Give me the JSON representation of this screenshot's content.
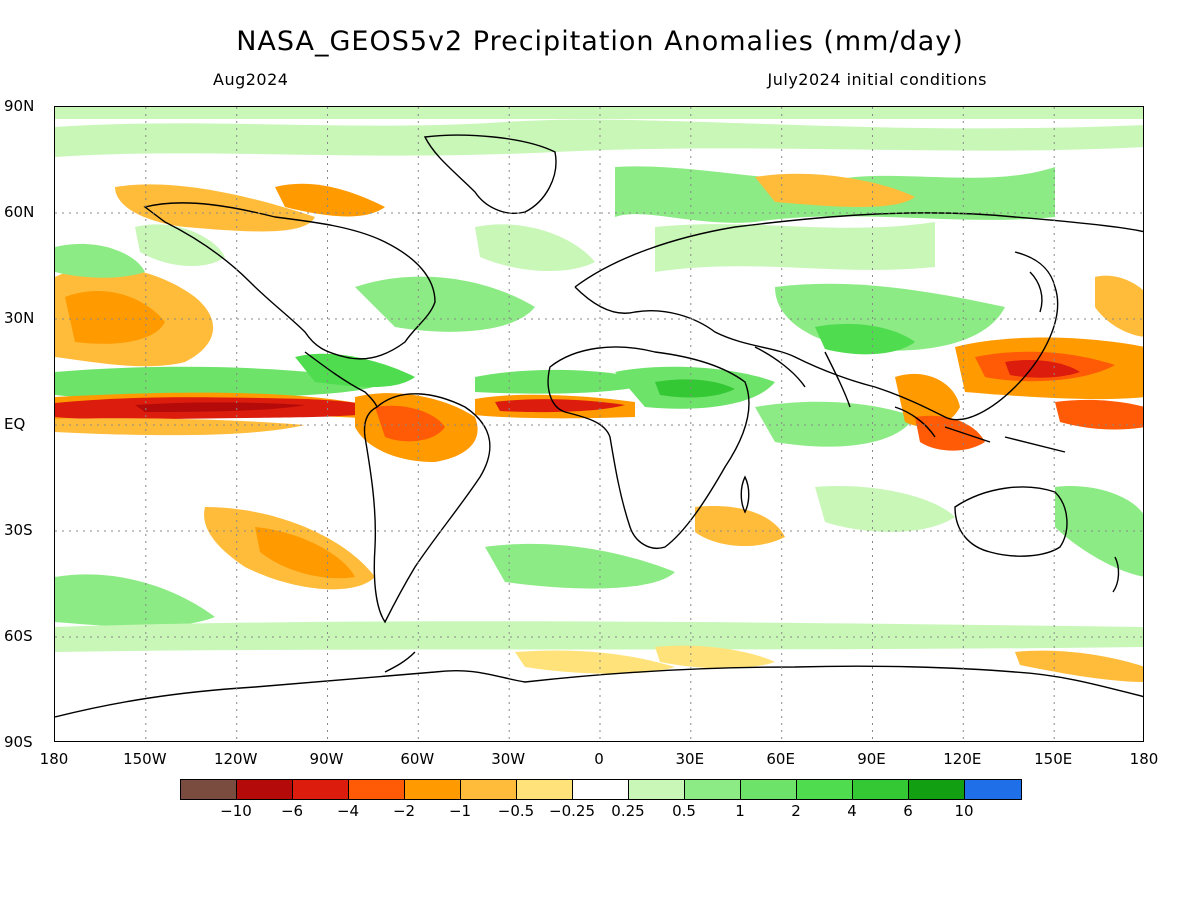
{
  "title": "NASA_GEOS5v2 Precipitation Anomalies (mm/day)",
  "subtitle_left": "Aug2024",
  "subtitle_right": "July2024 initial conditions",
  "lat_labels": [
    "90N",
    "60N",
    "30N",
    "EQ",
    "30S",
    "60S",
    "90S"
  ],
  "lon_labels": [
    "180",
    "150W",
    "120W",
    "90W",
    "60W",
    "30W",
    "0",
    "30E",
    "60E",
    "90E",
    "120E",
    "150E",
    "180"
  ],
  "colorbar": {
    "colors": [
      "#7a4b3f",
      "#b50a0a",
      "#dc1c0c",
      "#ff5a05",
      "#ff9a00",
      "#ffbc3a",
      "#ffe37a",
      "#ffffff",
      "#c8f7b8",
      "#8ceb84",
      "#6de36a",
      "#4fdc4f",
      "#35c835",
      "#12a012",
      "#1f6fe8"
    ],
    "ticks": [
      "−10",
      "−6",
      "−4",
      "−2",
      "−1",
      "−0.5",
      "−0.25",
      "0.25",
      "0.5",
      "1",
      "2",
      "4",
      "6",
      "10"
    ]
  },
  "legend_colors": {
    "strong_negative": "#b50a0a",
    "negative": "#ff5a05",
    "weak_negative": "#ffbc3a",
    "weak_positive": "#c8f7b8",
    "positive": "#6de36a",
    "strong_positive": "#12a012"
  }
}
